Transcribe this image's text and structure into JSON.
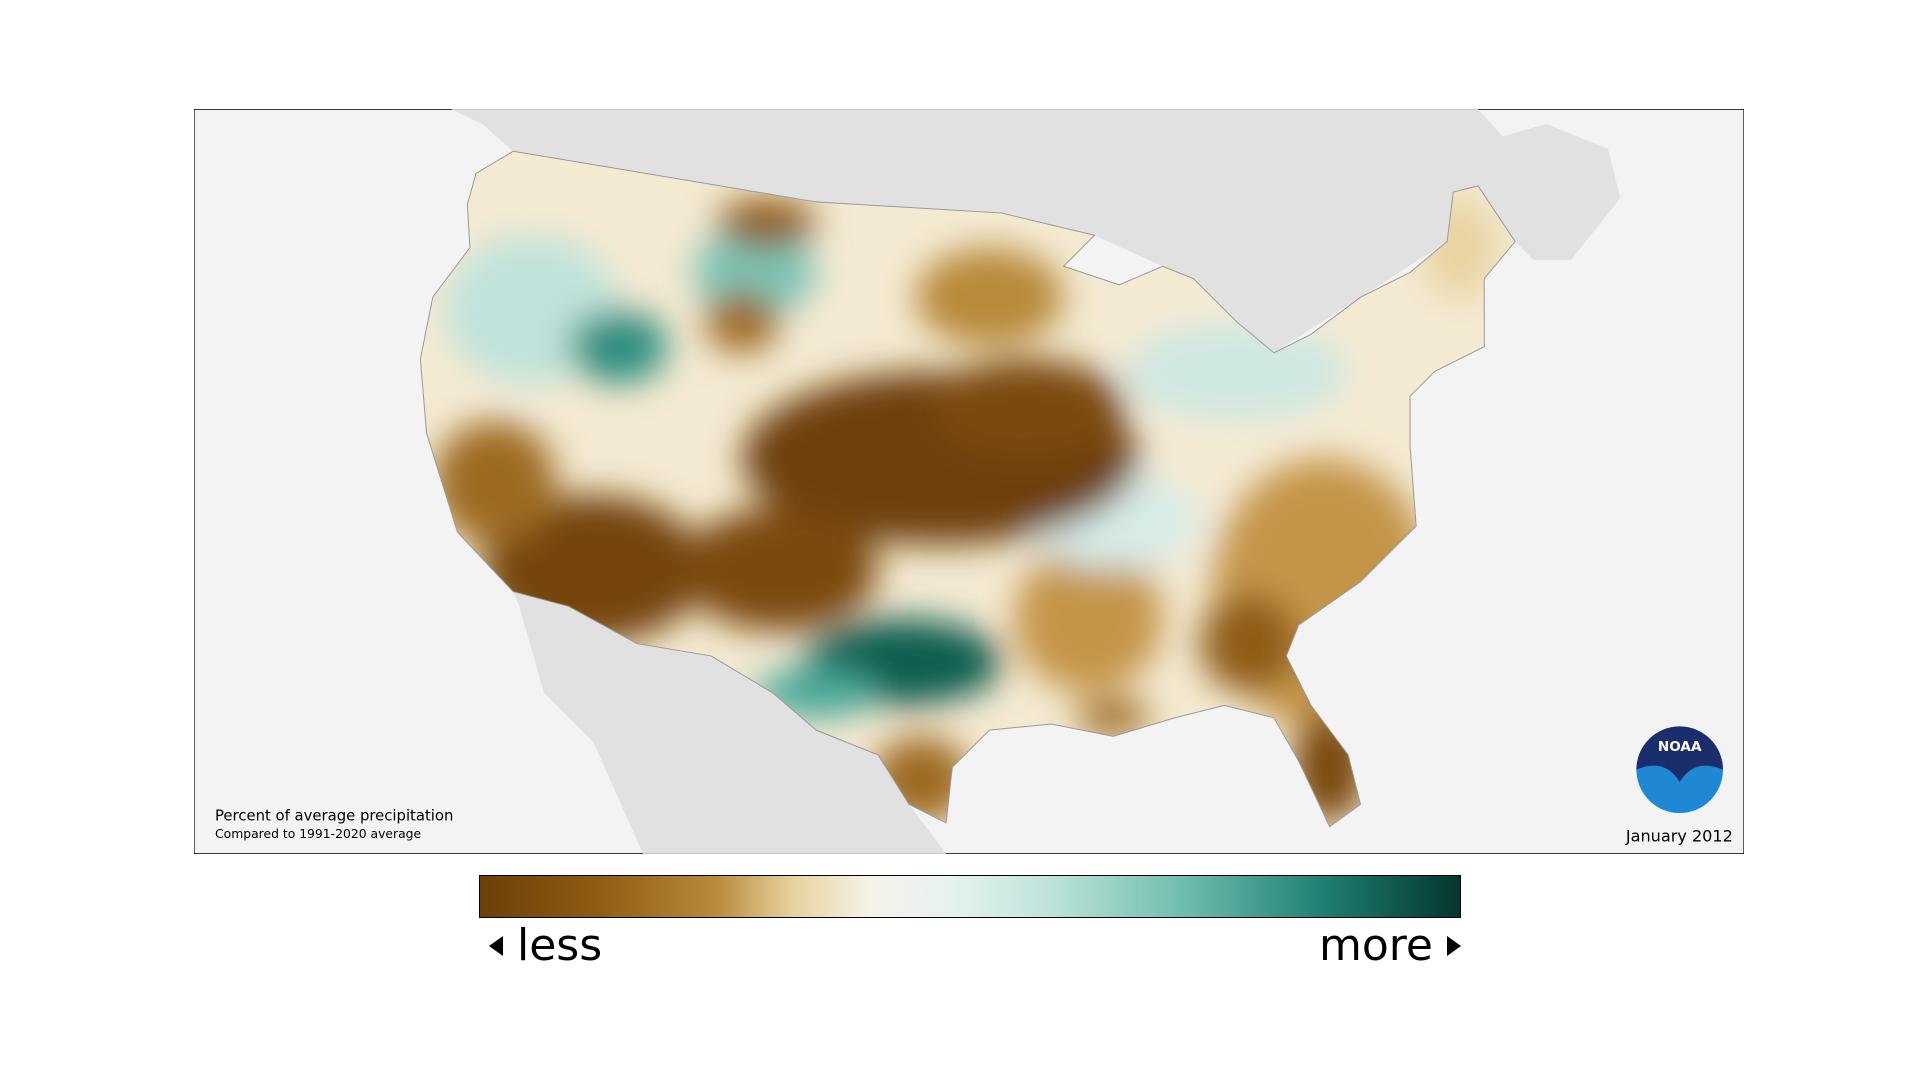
{
  "map": {
    "title": "Percent of average precipitation",
    "subtitle": "Compared to 1991-2020 average",
    "date": "January 2012",
    "logo": "NOAA"
  },
  "legend": {
    "low_label": "less",
    "high_label": "more"
  }
}
